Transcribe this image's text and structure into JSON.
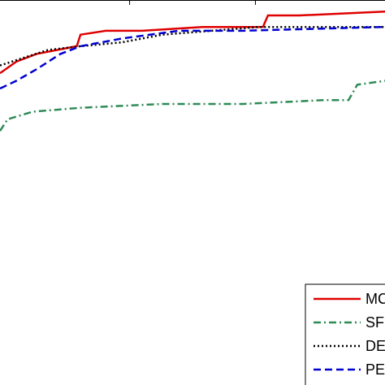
{
  "chart_data": {
    "type": "line",
    "xlim": [
      -0.03,
      3.03
    ],
    "ylim": [
      0,
      1
    ],
    "xticks": [
      1,
      2
    ],
    "legend": "lower right",
    "series": [
      {
        "name": "MC",
        "color": "#e00000",
        "dash": "solid",
        "x": [
          -0.03,
          0.1,
          0.26,
          0.58,
          0.61,
          0.81,
          1.1,
          1.58,
          2.06,
          2.1,
          2.35,
          3.03
        ],
        "values": [
          0.81,
          0.84,
          0.86,
          0.88,
          0.91,
          0.92,
          0.92,
          0.93,
          0.93,
          0.96,
          0.96,
          0.97
        ]
      },
      {
        "name": "SF",
        "color": "#2e8b57",
        "dash": "dashdot",
        "x": [
          -0.03,
          0.03,
          0.23,
          0.61,
          1.26,
          1.9,
          2.55,
          2.74,
          2.81,
          3.03
        ],
        "values": [
          0.66,
          0.69,
          0.71,
          0.72,
          0.73,
          0.73,
          0.74,
          0.74,
          0.78,
          0.79
        ]
      },
      {
        "name": "DE",
        "color": "#000000",
        "dash": "dotted",
        "x": [
          -0.03,
          0.16,
          0.35,
          0.61,
          0.94,
          1.26,
          1.65,
          2.03,
          3.03
        ],
        "values": [
          0.83,
          0.85,
          0.87,
          0.88,
          0.89,
          0.91,
          0.92,
          0.93,
          0.93
        ]
      },
      {
        "name": "PE",
        "color": "#0000d0",
        "dash": "dashed",
        "x": [
          -0.03,
          0.1,
          0.26,
          0.45,
          0.61,
          0.94,
          1.39,
          1.9,
          3.03
        ],
        "values": [
          0.77,
          0.79,
          0.82,
          0.86,
          0.88,
          0.9,
          0.92,
          0.92,
          0.93
        ]
      }
    ]
  }
}
